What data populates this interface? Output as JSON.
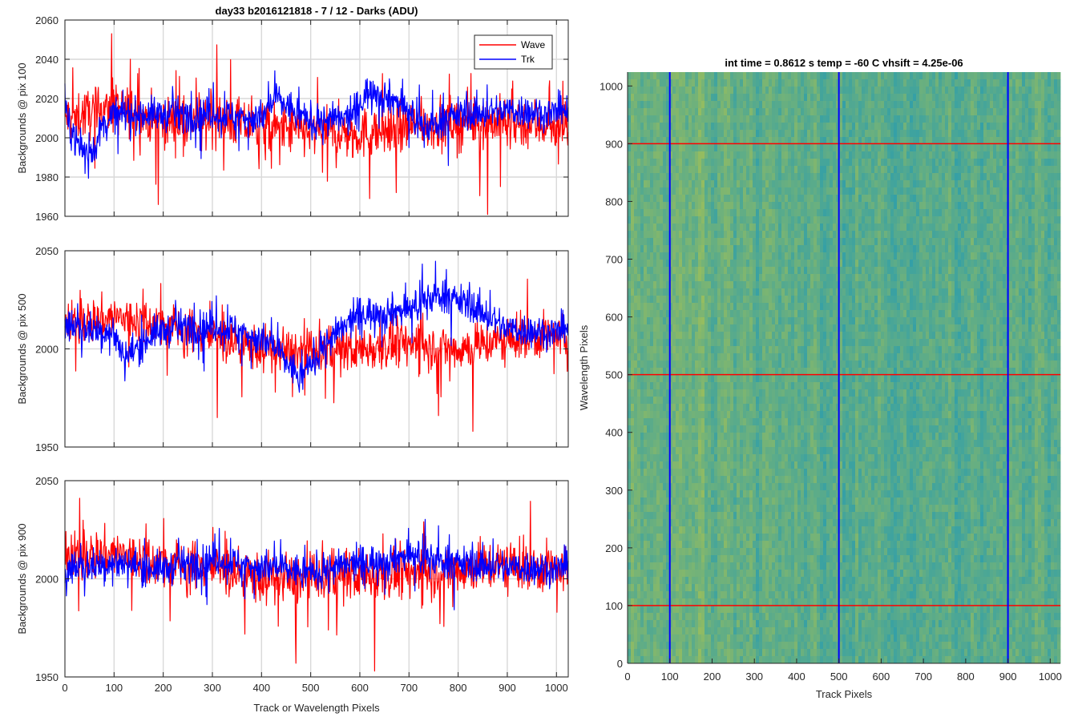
{
  "figure_title": "day33 b2016121818 - 7 / 12 - Darks (ADU)",
  "colors": {
    "wave": "#ff0000",
    "trk": "#0000ff",
    "grid": "#d9d9d9"
  },
  "chart_data": [
    {
      "type": "line",
      "title": "day33 b2016121818 - 7 / 12 - Darks (ADU)",
      "xlabel": "",
      "ylabel": "Backgrounds @ pix 100",
      "xlim": [
        0,
        1024
      ],
      "ylim": [
        1960,
        2060
      ],
      "xticks": [
        0,
        100,
        200,
        300,
        400,
        500,
        600,
        700,
        800,
        900,
        1000
      ],
      "yticks": [
        1960,
        1980,
        2000,
        2020,
        2040,
        2060
      ],
      "grid": true,
      "legend_position": "top-right",
      "series": [
        {
          "name": "Wave",
          "color": "#ff0000",
          "mean": 2009,
          "noise": 9,
          "spike_x": [
            95,
            133,
            190,
            620,
            860
          ],
          "spike_y": [
            2053,
            2040,
            1966,
            1969,
            1961
          ],
          "anchors": [
            [
              0,
              2010
            ],
            [
              100,
              2015
            ],
            [
              200,
              2008
            ],
            [
              300,
              2010
            ],
            [
              400,
              2005
            ],
            [
              500,
              2003
            ],
            [
              600,
              2002
            ],
            [
              700,
              2006
            ],
            [
              800,
              2008
            ],
            [
              900,
              2008
            ],
            [
              1024,
              2006
            ]
          ]
        },
        {
          "name": "Trk",
          "color": "#0000ff",
          "mean": 2012,
          "noise": 6,
          "spike_x": [],
          "spike_y": [],
          "anchors": [
            [
              0,
              2012
            ],
            [
              20,
              2000
            ],
            [
              40,
              1992
            ],
            [
              60,
              1995
            ],
            [
              80,
              2008
            ],
            [
              100,
              2012
            ],
            [
              200,
              2012
            ],
            [
              300,
              2012
            ],
            [
              400,
              2010
            ],
            [
              430,
              2020
            ],
            [
              500,
              2008
            ],
            [
              580,
              2010
            ],
            [
              620,
              2025
            ],
            [
              680,
              2018
            ],
            [
              730,
              2005
            ],
            [
              800,
              2012
            ],
            [
              900,
              2014
            ],
            [
              1024,
              2012
            ]
          ]
        }
      ]
    },
    {
      "type": "line",
      "title": "",
      "xlabel": "",
      "ylabel": "Backgrounds @ pix 500",
      "xlim": [
        0,
        1024
      ],
      "ylim": [
        1950,
        2050
      ],
      "xticks": [
        0,
        100,
        200,
        300,
        400,
        500,
        600,
        700,
        800,
        900,
        1000
      ],
      "yticks": [
        1950,
        2000,
        2050
      ],
      "grid": true,
      "series": [
        {
          "name": "Wave",
          "color": "#ff0000",
          "mean": 2008,
          "noise": 8,
          "spike_x": [
            310,
            760,
            830
          ],
          "spike_y": [
            1965,
            1966,
            1958
          ],
          "anchors": [
            [
              0,
              2012
            ],
            [
              100,
              2016
            ],
            [
              200,
              2013
            ],
            [
              300,
              2006
            ],
            [
              400,
              2000
            ],
            [
              500,
              1998
            ],
            [
              600,
              2000
            ],
            [
              700,
              2003
            ],
            [
              800,
              2000
            ],
            [
              900,
              2005
            ],
            [
              1024,
              2007
            ]
          ]
        },
        {
          "name": "Trk",
          "color": "#0000ff",
          "mean": 2012,
          "noise": 6,
          "spike_x": [],
          "spike_y": [],
          "anchors": [
            [
              0,
              2012
            ],
            [
              100,
              2008
            ],
            [
              120,
              1995
            ],
            [
              180,
              2008
            ],
            [
              250,
              2012
            ],
            [
              350,
              2010
            ],
            [
              420,
              2002
            ],
            [
              480,
              1985
            ],
            [
              520,
              2000
            ],
            [
              600,
              2018
            ],
            [
              700,
              2020
            ],
            [
              760,
              2028
            ],
            [
              830,
              2022
            ],
            [
              900,
              2010
            ],
            [
              1024,
              2008
            ]
          ]
        }
      ]
    },
    {
      "type": "line",
      "title": "",
      "xlabel": "Track or Wavelength Pixels",
      "ylabel": "Backgrounds @ pix 900",
      "xlim": [
        0,
        1024
      ],
      "ylim": [
        1950,
        2050
      ],
      "xticks": [
        0,
        100,
        200,
        300,
        400,
        500,
        600,
        700,
        800,
        900,
        1000
      ],
      "yticks": [
        1950,
        2000,
        2050
      ],
      "grid": true,
      "series": [
        {
          "name": "Wave",
          "color": "#ff0000",
          "mean": 2005,
          "noise": 9,
          "spike_x": [
            30,
            470,
            630
          ],
          "spike_y": [
            2041,
            1957,
            1953
          ],
          "anchors": [
            [
              0,
              2010
            ],
            [
              100,
              2013
            ],
            [
              200,
              2008
            ],
            [
              300,
              2006
            ],
            [
              400,
              2000
            ],
            [
              500,
              2000
            ],
            [
              600,
              2002
            ],
            [
              700,
              2003
            ],
            [
              800,
              2005
            ],
            [
              900,
              2007
            ],
            [
              1024,
              2004
            ]
          ]
        },
        {
          "name": "Trk",
          "color": "#0000ff",
          "mean": 2008,
          "noise": 6,
          "spike_x": [],
          "spike_y": [],
          "anchors": [
            [
              0,
              2005
            ],
            [
              100,
              2008
            ],
            [
              200,
              2005
            ],
            [
              300,
              2010
            ],
            [
              400,
              2006
            ],
            [
              500,
              2003
            ],
            [
              600,
              2008
            ],
            [
              700,
              2012
            ],
            [
              800,
              2008
            ],
            [
              900,
              2006
            ],
            [
              1024,
              2005
            ]
          ]
        }
      ]
    },
    {
      "type": "heatmap",
      "title": "int time = 0.8612 s   temp = -60 C   vhsift = 4.25e-06",
      "xlabel": "Track Pixels",
      "ylabel": "Wavelength Pixels",
      "xlim": [
        0,
        1024
      ],
      "ylim": [
        0,
        1024
      ],
      "xticks": [
        0,
        100,
        200,
        300,
        400,
        500,
        600,
        700,
        800,
        900,
        1000
      ],
      "yticks": [
        0,
        100,
        200,
        300,
        400,
        500,
        600,
        700,
        800,
        900,
        1000
      ],
      "grid": false,
      "colormap": "parula",
      "vertical_markers": [
        100,
        500,
        900
      ],
      "vertical_marker_color": "#0000ff",
      "horizontal_markers": [
        100,
        500,
        900
      ],
      "horizontal_marker_color": "#ff0000"
    }
  ]
}
